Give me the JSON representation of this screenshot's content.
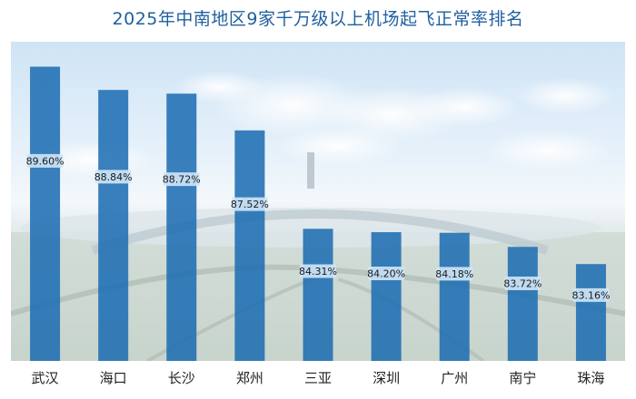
{
  "chart_data": {
    "type": "bar",
    "title": "2025年中南地区9家千万级以上机场起飞正常率排名",
    "categories": [
      "武汉",
      "海口",
      "长沙",
      "郑州",
      "三亚",
      "深圳",
      "广州",
      "南宁",
      "珠海"
    ],
    "values": [
      89.6,
      88.84,
      88.72,
      87.52,
      84.31,
      84.2,
      84.18,
      83.72,
      83.16
    ],
    "value_labels": [
      "89.60%",
      "88.84%",
      "88.72%",
      "87.52%",
      "84.31%",
      "84.20%",
      "84.18%",
      "83.72%",
      "83.16%"
    ],
    "ylim": [
      80,
      90
    ],
    "grid": false,
    "legend": "none",
    "bar_color": "#1f6eb3"
  }
}
